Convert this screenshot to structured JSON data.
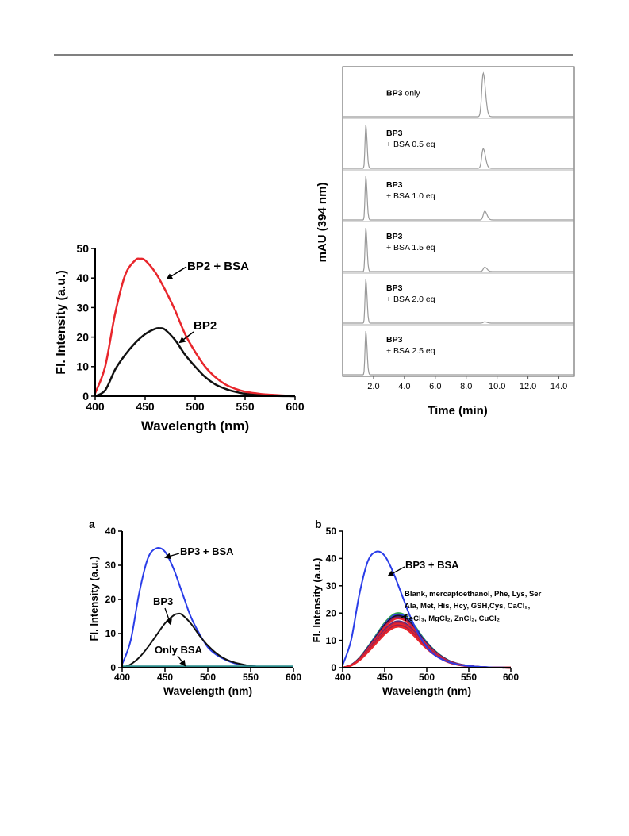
{
  "chart_data": [
    {
      "id": "bp2",
      "type": "line",
      "xlabel": "Wavelength (nm)",
      "ylabel": "Fl. Intensity (a.u.)",
      "xlim": [
        400,
        600
      ],
      "ylim": [
        0,
        50
      ],
      "xticks": [
        "400",
        "450",
        "500",
        "550",
        "600"
      ],
      "yticks": [
        "0",
        "10",
        "20",
        "30",
        "40",
        "50"
      ],
      "series": [
        {
          "name": "BP2 + BSA",
          "color": "#e8262c",
          "x": [
            400,
            410,
            420,
            430,
            440,
            445,
            450,
            460,
            470,
            480,
            490,
            500,
            510,
            520,
            530,
            540,
            550,
            560,
            570,
            580,
            590,
            600
          ],
          "y": [
            1,
            10,
            28,
            41,
            46,
            46.5,
            46,
            42,
            36,
            29,
            21,
            15,
            10,
            6.5,
            4,
            2.5,
            1.5,
            1,
            0.6,
            0.4,
            0.2,
            0.1
          ]
        },
        {
          "name": "BP2",
          "color": "#111111",
          "x": [
            400,
            410,
            420,
            430,
            440,
            450,
            460,
            465,
            470,
            480,
            490,
            500,
            510,
            520,
            530,
            540,
            550,
            560,
            570,
            580,
            600
          ],
          "y": [
            0,
            2,
            9,
            14,
            18,
            21,
            22.8,
            23,
            22.5,
            19,
            14,
            10,
            6.5,
            4,
            2.5,
            1.5,
            0.8,
            0.4,
            0.2,
            0.1,
            0
          ]
        }
      ],
      "annotations": [
        "BP2 + BSA",
        "BP2"
      ]
    },
    {
      "id": "hplc",
      "type": "line",
      "xlabel": "Time (min)",
      "ylabel": "mAU (394 nm)",
      "xticks": [
        "2.0",
        "4.0",
        "6.0",
        "8.0",
        "10.0",
        "12.0",
        "14.0"
      ],
      "xlim": [
        0,
        15
      ],
      "color": "#9a9a9a",
      "panels": [
        {
          "name": "BP3",
          "suffix": "only",
          "sub": "",
          "peaks": [
            {
              "t": 9.1,
              "h": 1.0
            }
          ]
        },
        {
          "name": "BP3",
          "suffix": "",
          "sub": "+ BSA 0.5 eq",
          "peaks": [
            {
              "t": 1.5,
              "h": 1.0
            },
            {
              "t": 9.1,
              "h": 0.45
            }
          ]
        },
        {
          "name": "BP3",
          "suffix": "",
          "sub": "+ BSA 1.0 eq",
          "peaks": [
            {
              "t": 1.5,
              "h": 1.0
            },
            {
              "t": 9.2,
              "h": 0.2
            }
          ]
        },
        {
          "name": "BP3",
          "suffix": "",
          "sub": "+ BSA 1.5 eq",
          "peaks": [
            {
              "t": 1.5,
              "h": 1.0
            },
            {
              "t": 9.2,
              "h": 0.1
            }
          ]
        },
        {
          "name": "BP3",
          "suffix": "",
          "sub": "+ BSA 2.0 eq",
          "peaks": [
            {
              "t": 1.5,
              "h": 1.0
            },
            {
              "t": 9.2,
              "h": 0.03
            }
          ]
        },
        {
          "name": "BP3",
          "suffix": "",
          "sub": "+ BSA 2.5 eq",
          "peaks": [
            {
              "t": 1.5,
              "h": 1.0
            }
          ]
        }
      ]
    },
    {
      "id": "a",
      "panel_label": "a",
      "type": "line",
      "xlabel": "Wavelength (nm)",
      "ylabel": "Fl. Intensity (a.u.)",
      "xlim": [
        400,
        600
      ],
      "ylim": [
        0,
        40
      ],
      "xticks": [
        "400",
        "450",
        "500",
        "550",
        "600"
      ],
      "yticks": [
        "0",
        "10",
        "20",
        "30",
        "40"
      ],
      "series": [
        {
          "name": "BP3 + BSA",
          "color": "#2a3de8",
          "x": [
            400,
            410,
            420,
            430,
            440,
            450,
            460,
            470,
            480,
            490,
            500,
            510,
            520,
            530,
            540,
            550,
            560,
            570,
            580,
            590,
            600
          ],
          "y": [
            1,
            8,
            22,
            32,
            35,
            34,
            29,
            22,
            15,
            10,
            6,
            3.8,
            2.4,
            1.4,
            0.9,
            0.5,
            0.3,
            0.2,
            0.1,
            0.05,
            0
          ]
        },
        {
          "name": "BP3",
          "color": "#111111",
          "x": [
            400,
            410,
            420,
            430,
            440,
            450,
            460,
            465,
            470,
            480,
            490,
            500,
            510,
            520,
            530,
            540,
            550,
            560,
            570,
            580,
            600
          ],
          "y": [
            0,
            1,
            3,
            6,
            9.5,
            13,
            15.3,
            15.8,
            15.5,
            13,
            9.5,
            6.5,
            4.2,
            2.6,
            1.6,
            1,
            0.5,
            0.3,
            0.15,
            0.05,
            0
          ]
        },
        {
          "name": "Only BSA",
          "color": "#2a8a8a",
          "x": [
            400,
            600
          ],
          "y": [
            0.4,
            0.4
          ]
        }
      ],
      "annotations": [
        "BP3 + BSA",
        "BP3",
        "Only BSA"
      ]
    },
    {
      "id": "b",
      "panel_label": "b",
      "type": "line",
      "xlabel": "Wavelength (nm)",
      "ylabel": "Fl. Intensity (a.u.)",
      "xlim": [
        400,
        600
      ],
      "ylim": [
        0,
        50
      ],
      "xticks": [
        "400",
        "450",
        "500",
        "550",
        "600"
      ],
      "yticks": [
        "0",
        "10",
        "20",
        "30",
        "40",
        "50"
      ],
      "series": [
        {
          "name": "BP3 + BSA",
          "color": "#2a3de8",
          "x": [
            400,
            410,
            420,
            430,
            440,
            450,
            460,
            470,
            480,
            490,
            500,
            510,
            520,
            530,
            540,
            550,
            560,
            570,
            580,
            590,
            600
          ],
          "y": [
            1,
            10,
            27,
            39,
            42.5,
            41,
            35,
            27,
            19,
            12.5,
            7.5,
            4.5,
            2.8,
            1.7,
            1,
            0.6,
            0.35,
            0.2,
            0.1,
            0.05,
            0
          ]
        }
      ],
      "group_peaks": [
        20,
        19.5,
        19,
        18.5,
        18,
        17,
        16.5,
        16,
        15.5,
        15,
        15
      ],
      "group_colors": [
        "#2fa84a",
        "#2a3de8",
        "#1a1a1a",
        "#7a1f6e",
        "#e8262c",
        "#5a2a80",
        "#c01f40",
        "#e8262c",
        "#9a1f50",
        "#d8202c",
        "#e8262c"
      ],
      "annotations": [
        "BP3 + BSA"
      ],
      "legend_lines": [
        "Blank, mercaptoethanol, Phe, Lys, Ser",
        "Ala, Met, His, Hcy, GSH,Cys, CaCl₂,",
        "FeCl₃, MgCl₂, ZnCl₂, CuCl₂"
      ]
    }
  ]
}
